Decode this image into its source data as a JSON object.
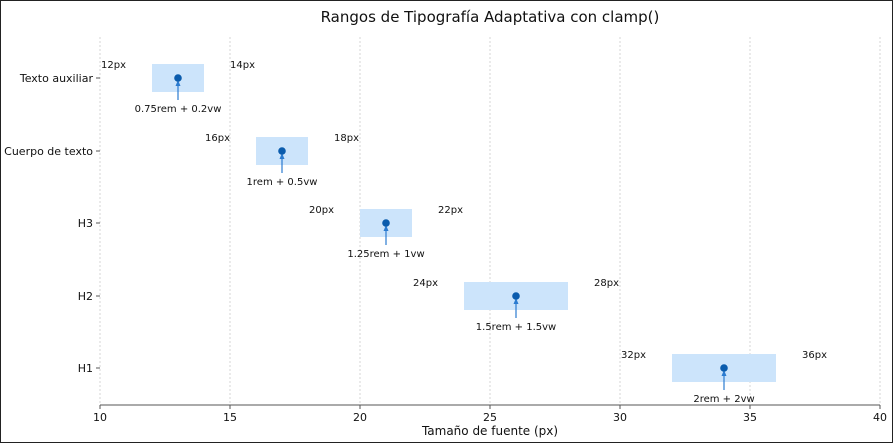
{
  "chart_data": {
    "type": "range",
    "title": "Rangos de Tipografía Adaptativa con clamp()",
    "xlabel": "Tamaño de fuente (px)",
    "ylabel": "",
    "xlim": [
      10,
      40
    ],
    "xticks": [
      "10",
      "15",
      "20",
      "25",
      "30",
      "35",
      "40"
    ],
    "grid": "vertical dotted",
    "categories": [
      "Texto auxiliar",
      "Cuerpo de texto",
      "H3",
      "H2",
      "H1"
    ],
    "series": [
      {
        "category": "Texto auxiliar",
        "min": 12,
        "max": 14,
        "value": 13,
        "min_label": "12px",
        "max_label": "14px",
        "formula": "0.75rem + 0.2vw"
      },
      {
        "category": "Cuerpo de texto",
        "min": 16,
        "max": 18,
        "value": 17,
        "min_label": "16px",
        "max_label": "18px",
        "formula": "1rem + 0.5vw"
      },
      {
        "category": "H3",
        "min": 20,
        "max": 22,
        "value": 21,
        "min_label": "20px",
        "max_label": "22px",
        "formula": "1.25rem + 1vw"
      },
      {
        "category": "H2",
        "min": 24,
        "max": 28,
        "value": 26,
        "min_label": "24px",
        "max_label": "28px",
        "formula": "1.5rem + 1.5vw"
      },
      {
        "category": "H1",
        "min": 32,
        "max": 36,
        "value": 34,
        "min_label": "32px",
        "max_label": "36px",
        "formula": "2rem + 2vw"
      }
    ],
    "colors": {
      "range_fill": "#cce4fb",
      "point": "#0b5cad",
      "arrow": "#2b7bd0",
      "grid": "#cccccc",
      "axis": "#555555"
    }
  }
}
